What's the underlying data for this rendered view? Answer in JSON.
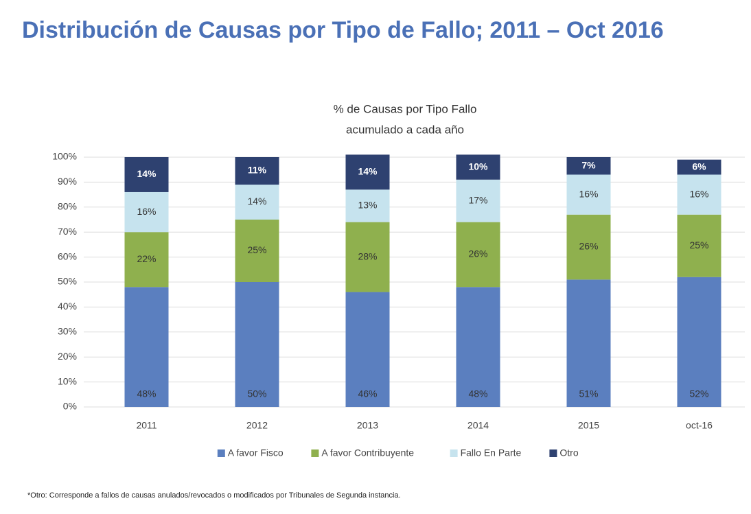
{
  "chart_data": {
    "type": "stacked_bar",
    "title": "Distribución de Causas por Tipo de Fallo; 2011 – Oct 2016",
    "subtitle": [
      "% de Causas por Tipo Fallo",
      "acumulado a cada año"
    ],
    "categories": [
      "2011",
      "2012",
      "2013",
      "2014",
      "2015",
      "oct-16"
    ],
    "series": [
      {
        "name": "A favor Fisco",
        "color": "#5b7fbf",
        "values": [
          48,
          50,
          46,
          48,
          51,
          52
        ],
        "value_labels": [
          "48%",
          "50%",
          "46%",
          "48%",
          "51%",
          "52%"
        ]
      },
      {
        "name": "A favor Contribuyente",
        "color": "#8fb04e",
        "values": [
          22,
          25,
          28,
          26,
          26,
          25
        ],
        "value_labels": [
          "22%",
          "25%",
          "28%",
          "26%",
          "26%",
          "25%"
        ]
      },
      {
        "name": "Fallo En Parte",
        "color": "#c6e3ee",
        "values": [
          16,
          14,
          13,
          17,
          16,
          16
        ],
        "value_labels": [
          "16%",
          "14%",
          "13%",
          "17%",
          "16%",
          "16%"
        ]
      },
      {
        "name": "Otro",
        "color": "#2e4170",
        "values": [
          14,
          11,
          14,
          10,
          7,
          6
        ],
        "value_labels": [
          "14%",
          "11%",
          "14%",
          "10%",
          "7%",
          "6%"
        ]
      }
    ],
    "ylim": [
      0,
      100
    ],
    "yticks": [
      {
        "value": 0,
        "label": "0%"
      },
      {
        "value": 10,
        "label": "10%"
      },
      {
        "value": 20,
        "label": "20%"
      },
      {
        "value": 30,
        "label": "30%"
      },
      {
        "value": 40,
        "label": "40%"
      },
      {
        "value": 50,
        "label": "50%"
      },
      {
        "value": 60,
        "label": "60%"
      },
      {
        "value": 70,
        "label": "70%"
      },
      {
        "value": 80,
        "label": "80%"
      },
      {
        "value": 90,
        "label": "90%"
      },
      {
        "value": 100,
        "label": "100%"
      }
    ],
    "grid": true,
    "legend": "bottom",
    "note": "*Otro: Corresponde a fallos de causas anulados/revocados o modificados por Tribunales de Segunda instancia."
  }
}
